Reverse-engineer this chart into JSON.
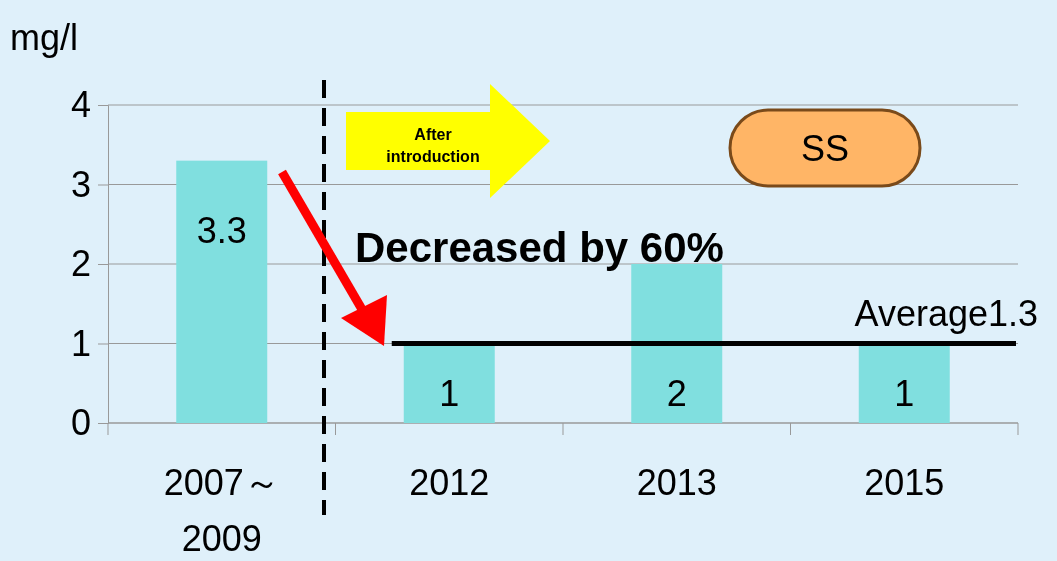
{
  "chart_data": {
    "type": "bar",
    "ylabel": "mg/l",
    "categories": [
      "2007～2009",
      "2012",
      "2013",
      "2015"
    ],
    "values": [
      3.3,
      1,
      2,
      1
    ],
    "color": "#80dfdf",
    "ylim": [
      0,
      4
    ],
    "yticks": [
      0,
      1,
      2,
      3,
      4
    ],
    "grid": "y",
    "data_labels": true,
    "ref_lines": [
      {
        "axis": "y",
        "value": 1,
        "label": "Average1.3",
        "color": "#000000"
      }
    ],
    "annotations": [
      "After introduction",
      "SS",
      "Decreased by 60%"
    ]
  }
}
